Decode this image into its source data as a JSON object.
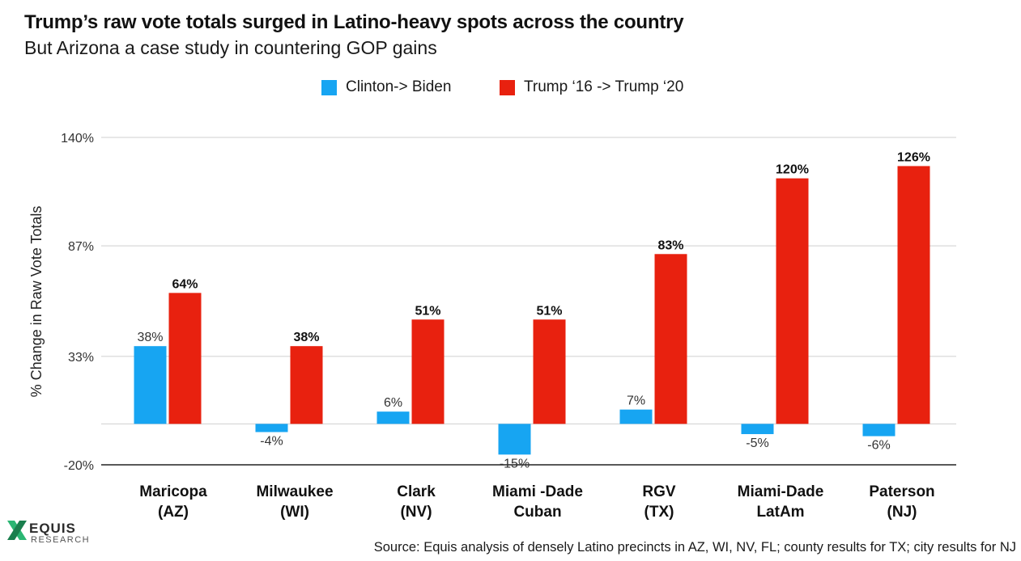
{
  "header": {
    "title": "Trump’s raw vote totals surged in Latino-heavy spots across the country",
    "subtitle": "But Arizona a case study in countering GOP gains"
  },
  "legend": [
    {
      "label": "Clinton-> Biden",
      "color": "#17a5f2"
    },
    {
      "label": "Trump ‘16 -> Trump ‘20",
      "color": "#e8210f"
    }
  ],
  "chart_data": {
    "type": "bar",
    "ylabel": "% Change in Raw Vote Totals",
    "ylim": [
      -20,
      140
    ],
    "yticks": [
      140,
      87,
      33,
      -20
    ],
    "ytick_labels": [
      "140%",
      "87%",
      "33%",
      "-20%"
    ],
    "grid": true,
    "legend_position": "top-center",
    "categories": [
      [
        "Maricopa",
        "(AZ)"
      ],
      [
        "Milwaukee",
        "(WI)"
      ],
      [
        "Clark",
        "(NV)"
      ],
      [
        "Miami -Dade",
        "Cuban"
      ],
      [
        "RGV",
        "(TX)"
      ],
      [
        "Miami-Dade",
        "LatAm"
      ],
      [
        "Paterson",
        "(NJ)"
      ]
    ],
    "series": [
      {
        "name": "Clinton-> Biden",
        "color": "#17a5f2",
        "values": [
          38,
          -4,
          6,
          -15,
          7,
          -5,
          -6
        ],
        "labels": [
          "38%",
          "-4%",
          "6%",
          "-15%",
          "7%",
          "-5%",
          "-6%"
        ]
      },
      {
        "name": "Trump ‘16 -> Trump ‘20",
        "color": "#e8210f",
        "values": [
          64,
          38,
          51,
          51,
          83,
          120,
          126
        ],
        "labels": [
          "64%",
          "38%",
          "51%",
          "51%",
          "83%",
          "120%",
          "126%"
        ]
      }
    ]
  },
  "logo": {
    "main": "EQUIS",
    "sub": "RESEARCH"
  },
  "source": "Source: Equis analysis of densely Latino precincts in AZ, WI, NV, FL; county results for TX; city results for NJ"
}
